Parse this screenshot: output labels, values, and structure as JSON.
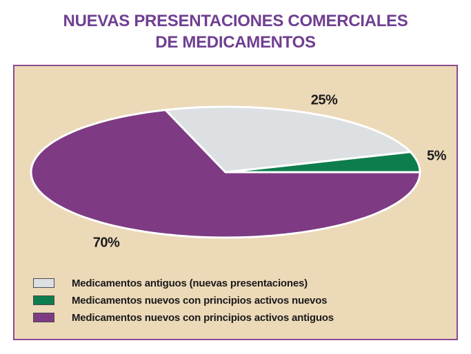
{
  "title": {
    "line1": "NUEVAS PRESENTACIONES COMERCIALES",
    "line2": "DE MEDICAMENTOS"
  },
  "colors": {
    "title_color": "#6f3f91",
    "panel_bg": "#ecd9b8",
    "panel_border": "#8b4a8e",
    "slice_gray": "#dce0e3",
    "slice_green": "#0e7d4d",
    "slice_purple": "#7e3b83",
    "label_text": "#1b1b1b"
  },
  "chart_data": {
    "type": "pie",
    "title": "NUEVAS PRESENTACIONES COMERCIALES DE MEDICAMENTOS",
    "slices": [
      {
        "label": "Medicamentos nuevos con principios activos nuevos",
        "value": 5,
        "pct_label": "5%",
        "color": "#0e7d4d"
      },
      {
        "label": "Medicamentos antiguos (nuevas presentaciones)",
        "value": 25,
        "pct_label": "25%",
        "color": "#dce0e3"
      },
      {
        "label": "Medicamentos nuevos con principios activos antiguos",
        "value": 70,
        "pct_label": "70%",
        "color": "#7e3b83"
      }
    ],
    "start_angle_deg": 0,
    "direction": "counterclockwise",
    "shape": "flattened-ellipse",
    "legend_position": "bottom-left"
  },
  "legend": {
    "items": [
      {
        "label": "Medicamentos antiguos (nuevas presentaciones)",
        "color": "#dce0e3"
      },
      {
        "label": "Medicamentos nuevos con principios activos nuevos",
        "color": "#0e7d4d"
      },
      {
        "label": "Medicamentos nuevos con principios activos antiguos",
        "color": "#7e3b83"
      }
    ]
  }
}
